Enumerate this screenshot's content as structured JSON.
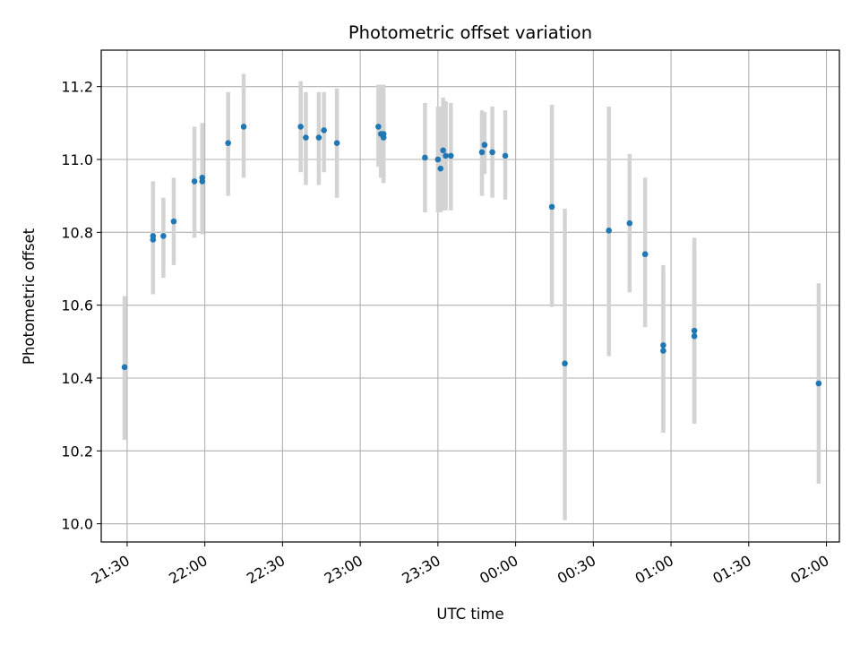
{
  "chart_data": {
    "type": "scatter",
    "title": "Photometric offset variation",
    "xlabel": "UTC time",
    "ylabel": "Photometric offset",
    "x_ticks": [
      "21:30",
      "22:00",
      "22:30",
      "23:00",
      "23:30",
      "00:00",
      "00:30",
      "01:00",
      "01:30",
      "02:00"
    ],
    "y_ticks": [
      "10.0",
      "10.2",
      "10.4",
      "10.6",
      "10.8",
      "11.0",
      "11.2"
    ],
    "xlim": [
      "21:20",
      "02:05"
    ],
    "ylim": [
      9.95,
      11.3
    ],
    "grid": true,
    "point_color": "#1f77b4",
    "errorbar_color": "#d3d3d3",
    "points": [
      {
        "t": "21:29",
        "y": 10.43,
        "lo": 10.23,
        "hi": 10.625
      },
      {
        "t": "21:40",
        "y": 10.79,
        "lo": 10.63,
        "hi": 10.94
      },
      {
        "t": "21:40",
        "y": 10.78,
        "lo": 10.63,
        "hi": 10.94
      },
      {
        "t": "21:44",
        "y": 10.79,
        "lo": 10.675,
        "hi": 10.895
      },
      {
        "t": "21:48",
        "y": 10.83,
        "lo": 10.71,
        "hi": 10.95
      },
      {
        "t": "21:56",
        "y": 10.94,
        "lo": 10.785,
        "hi": 11.09
      },
      {
        "t": "21:59",
        "y": 10.94,
        "lo": 10.795,
        "hi": 11.1
      },
      {
        "t": "21:59",
        "y": 10.95,
        "lo": 10.795,
        "hi": 11.1
      },
      {
        "t": "22:09",
        "y": 11.045,
        "lo": 10.9,
        "hi": 11.185
      },
      {
        "t": "22:15",
        "y": 11.09,
        "lo": 10.95,
        "hi": 11.235
      },
      {
        "t": "22:37",
        "y": 11.09,
        "lo": 10.965,
        "hi": 11.215
      },
      {
        "t": "22:39",
        "y": 11.06,
        "lo": 10.93,
        "hi": 11.185
      },
      {
        "t": "22:44",
        "y": 11.06,
        "lo": 10.93,
        "hi": 11.185
      },
      {
        "t": "22:46",
        "y": 11.08,
        "lo": 10.965,
        "hi": 11.185
      },
      {
        "t": "22:51",
        "y": 11.045,
        "lo": 10.895,
        "hi": 11.195
      },
      {
        "t": "23:07",
        "y": 11.09,
        "lo": 10.98,
        "hi": 11.205
      },
      {
        "t": "23:08",
        "y": 11.07,
        "lo": 10.95,
        "hi": 11.205
      },
      {
        "t": "23:09",
        "y": 11.07,
        "lo": 10.945,
        "hi": 11.205
      },
      {
        "t": "23:09",
        "y": 11.06,
        "lo": 10.935,
        "hi": 11.175
      },
      {
        "t": "23:25",
        "y": 11.005,
        "lo": 10.855,
        "hi": 11.155
      },
      {
        "t": "23:30",
        "y": 11.0,
        "lo": 10.855,
        "hi": 11.145
      },
      {
        "t": "23:31",
        "y": 10.975,
        "lo": 10.855,
        "hi": 11.145
      },
      {
        "t": "23:32",
        "y": 11.025,
        "lo": 10.86,
        "hi": 11.17
      },
      {
        "t": "23:33",
        "y": 11.01,
        "lo": 10.86,
        "hi": 11.16
      },
      {
        "t": "23:35",
        "y": 11.01,
        "lo": 10.86,
        "hi": 11.155
      },
      {
        "t": "23:47",
        "y": 11.02,
        "lo": 10.9,
        "hi": 11.135
      },
      {
        "t": "23:48",
        "y": 11.04,
        "lo": 10.96,
        "hi": 11.13
      },
      {
        "t": "23:51",
        "y": 11.02,
        "lo": 10.895,
        "hi": 11.145
      },
      {
        "t": "23:56",
        "y": 11.01,
        "lo": 10.89,
        "hi": 11.135
      },
      {
        "t": "00:14",
        "y": 10.87,
        "lo": 10.595,
        "hi": 11.15
      },
      {
        "t": "00:19",
        "y": 10.44,
        "lo": 10.01,
        "hi": 10.865
      },
      {
        "t": "00:36",
        "y": 10.805,
        "lo": 10.46,
        "hi": 11.145
      },
      {
        "t": "00:44",
        "y": 10.825,
        "lo": 10.635,
        "hi": 11.015
      },
      {
        "t": "00:50",
        "y": 10.74,
        "lo": 10.54,
        "hi": 10.95
      },
      {
        "t": "00:57",
        "y": 10.49,
        "lo": 10.25,
        "hi": 10.71
      },
      {
        "t": "00:57",
        "y": 10.475,
        "lo": 10.25,
        "hi": 10.695
      },
      {
        "t": "01:09",
        "y": 10.53,
        "lo": 10.275,
        "hi": 10.785
      },
      {
        "t": "01:09",
        "y": 10.515,
        "lo": 10.275,
        "hi": 10.76
      },
      {
        "t": "01:57",
        "y": 10.385,
        "lo": 10.11,
        "hi": 10.66
      }
    ]
  }
}
